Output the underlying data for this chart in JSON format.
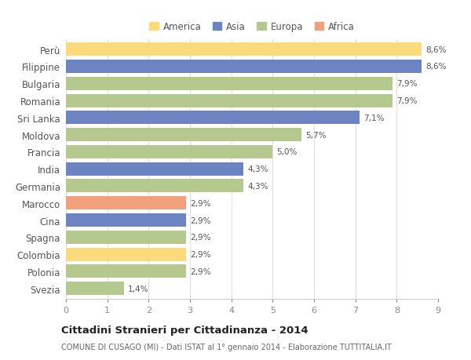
{
  "categories": [
    "Perù",
    "Filippine",
    "Bulgaria",
    "Romania",
    "Sri Lanka",
    "Moldova",
    "Francia",
    "India",
    "Germania",
    "Marocco",
    "Cina",
    "Spagna",
    "Colombia",
    "Polonia",
    "Svezia"
  ],
  "values": [
    8.6,
    8.6,
    7.9,
    7.9,
    7.1,
    5.7,
    5.0,
    4.3,
    4.3,
    2.9,
    2.9,
    2.9,
    2.9,
    2.9,
    1.4
  ],
  "colors": [
    "#FADA7A",
    "#6C85C2",
    "#B5C98E",
    "#B5C98E",
    "#6C85C2",
    "#B5C98E",
    "#B5C98E",
    "#6C85C2",
    "#B5C98E",
    "#F0A07A",
    "#6C85C2",
    "#B5C98E",
    "#FADA7A",
    "#B5C98E",
    "#B5C98E"
  ],
  "labels": [
    "8,6%",
    "8,6%",
    "7,9%",
    "7,9%",
    "7,1%",
    "5,7%",
    "5,0%",
    "4,3%",
    "4,3%",
    "2,9%",
    "2,9%",
    "2,9%",
    "2,9%",
    "2,9%",
    "1,4%"
  ],
  "legend_items": [
    {
      "label": "America",
      "color": "#FADA7A"
    },
    {
      "label": "Asia",
      "color": "#6C85C2"
    },
    {
      "label": "Europa",
      "color": "#B5C98E"
    },
    {
      "label": "Africa",
      "color": "#F0A07A"
    }
  ],
  "title": "Cittadini Stranieri per Cittadinanza - 2014",
  "subtitle": "COMUNE DI CUSAGO (MI) - Dati ISTAT al 1° gennaio 2014 - Elaborazione TUTTITALIA.IT",
  "xlim": [
    0,
    9
  ],
  "xticks": [
    0,
    1,
    2,
    3,
    4,
    5,
    6,
    7,
    8,
    9
  ],
  "bg_color": "#ffffff",
  "grid_color": "#e0e0e0",
  "bar_height": 0.78,
  "label_fontsize": 7.5,
  "ytick_fontsize": 8.5,
  "xtick_fontsize": 8
}
